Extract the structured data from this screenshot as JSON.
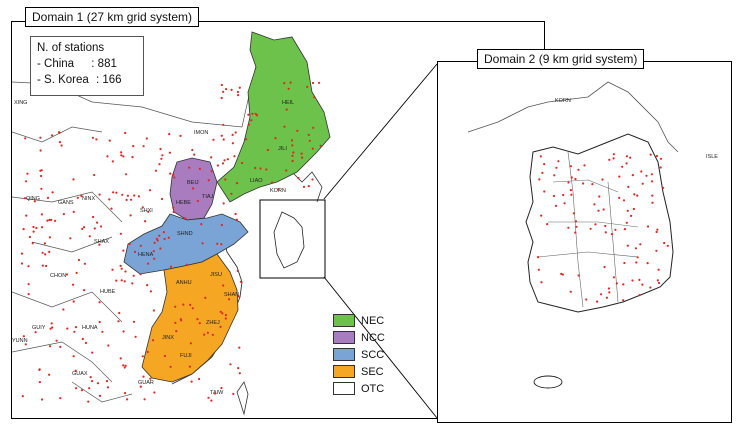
{
  "domain1": {
    "title": "Domain 1 (27 km grid system)"
  },
  "domain2": {
    "title": "Domain 2 (9 km grid system)"
  },
  "stations": {
    "heading": "N. of stations",
    "rows": [
      {
        "label": " - China",
        "value": ": 881"
      },
      {
        "label": " - S. Korea",
        "value": ": 166"
      }
    ]
  },
  "legend": [
    {
      "label": "NEC",
      "color": "#6cc24a"
    },
    {
      "label": "NCC",
      "color": "#a97bbf"
    },
    {
      "label": "SCC",
      "color": "#7aa3d6"
    },
    {
      "label": "SEC",
      "color": "#f5a623"
    },
    {
      "label": "OTC",
      "color": "#ffffff"
    }
  ],
  "province_labels": [
    "XING",
    "IMON",
    "HEIL",
    "JILI",
    "LIAO",
    "KORN",
    "BEIJ",
    "HEBE",
    "TIAJ",
    "SHXI",
    "QING",
    "GANS",
    "NINX",
    "SHAX",
    "SHND",
    "HENA",
    "CHON",
    "HUBE",
    "ANHU",
    "JISU",
    "SHAN",
    "GUIY",
    "HUNA",
    "ZHEJ",
    "JINX",
    "YUNN",
    "FUJI",
    "GUAX",
    "GUAR",
    "TAIW"
  ],
  "inset_labels": [
    "KORN",
    "ISLE"
  ]
}
